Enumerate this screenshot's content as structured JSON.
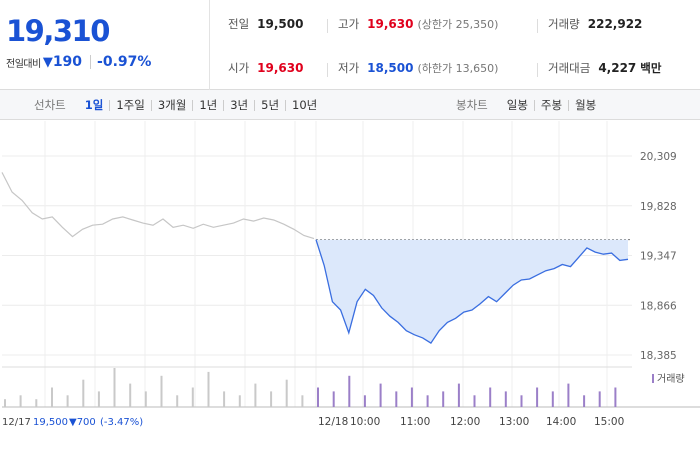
{
  "summary": {
    "price": "19,310",
    "diff_label": "전일대비",
    "diff_icon": "down-triangle-icon",
    "diff_value": "190",
    "diff_rate": "-0.97%"
  },
  "stats": {
    "prev_close": {
      "label": "전일",
      "value": "19,500"
    },
    "high": {
      "label": "고가",
      "value": "19,630",
      "sub": "(상한가 25,350)"
    },
    "volume": {
      "label": "거래량",
      "value": "222,922"
    },
    "open": {
      "label": "시가",
      "value": "19,630"
    },
    "low": {
      "label": "저가",
      "value": "18,500",
      "sub": "(하한가 13,650)"
    },
    "amount": {
      "label": "거래대금",
      "value": "4,227",
      "unit": "백만"
    }
  },
  "colors": {
    "up": "#e0001c",
    "down": "#1a52d4",
    "area": "#dce8fb",
    "line": "#3a6ee0",
    "prev_line": "#c6c6c6",
    "volume": "#9b7fc8"
  },
  "period_tabs": {
    "label": "선차트",
    "items": [
      "1일",
      "1주일",
      "3개월",
      "1년",
      "3년",
      "5년",
      "10년"
    ],
    "active": "1일"
  },
  "candle_tabs": {
    "label": "봉차트",
    "items": [
      "일봉",
      "주봉",
      "월봉"
    ]
  },
  "chart_data": {
    "type": "line",
    "y_ticks": [
      "20,309",
      "19,828",
      "19,347",
      "18,866",
      "18,385"
    ],
    "ylim": [
      18385,
      20309
    ],
    "x_ticks": [
      "12/18",
      "10:00",
      "11:00",
      "12:00",
      "13:00",
      "14:00",
      "15:00"
    ],
    "prev_day_label": "12/17",
    "prev_day_close": "19,500",
    "prev_day_change": "▼700",
    "prev_day_rate": "(-3.47%)",
    "reference_price": 19500,
    "series": [
      {
        "values_prev": [
          20150,
          19960,
          19880,
          19760,
          19700,
          19720,
          19620,
          19530,
          19600,
          19640,
          19650,
          19700,
          19720,
          19690,
          19660,
          19640,
          19700,
          19620,
          19640,
          19610,
          19650,
          19620,
          19640,
          19660,
          19700,
          19680,
          19710,
          19690,
          19650,
          19600,
          19540,
          19510
        ]
      },
      {
        "values_today": [
          19500,
          19250,
          18900,
          18820,
          18600,
          18900,
          19020,
          18960,
          18840,
          18760,
          18700,
          18620,
          18580,
          18550,
          18500,
          18620,
          18700,
          18740,
          18800,
          18820,
          18880,
          18950,
          18900,
          18980,
          19060,
          19110,
          19120,
          19160,
          19200,
          19220,
          19260,
          19240,
          19330,
          19420,
          19380,
          19360,
          19370,
          19300,
          19310
        ]
      }
    ],
    "volume_label": "거래량",
    "volume": [
      2,
      3,
      2,
      5,
      3,
      7,
      4,
      10,
      6,
      4,
      8,
      3,
      5,
      9,
      4,
      3,
      6,
      4,
      7,
      3,
      5,
      4,
      8,
      3,
      6,
      4,
      5,
      3,
      4,
      6,
      3,
      5,
      4,
      3,
      5,
      4,
      6,
      3,
      4,
      5
    ]
  }
}
